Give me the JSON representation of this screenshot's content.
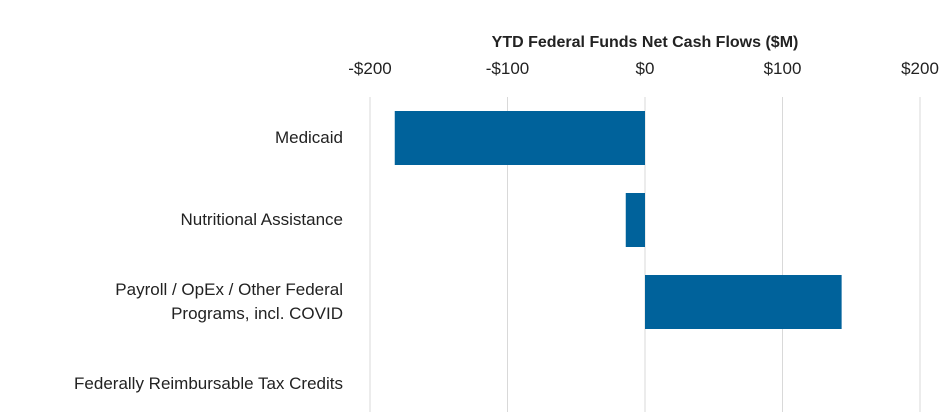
{
  "chart_data": {
    "type": "bar",
    "orientation": "horizontal",
    "title": "YTD Federal Funds Net Cash Flows ($M)",
    "categories": [
      "Medicaid",
      "Nutritional Assistance",
      "Payroll / OpEx / Other Federal Programs, incl. COVID",
      "Federally Reimbursable Tax Credits"
    ],
    "values": [
      -182,
      -14,
      143,
      0
    ],
    "color": "#00629b",
    "xlim": [
      -200,
      200
    ],
    "xticks": [
      {
        "value": -200,
        "label": "-$200"
      },
      {
        "value": -100,
        "label": "-$100"
      },
      {
        "value": 0,
        "label": "$0"
      },
      {
        "value": 100,
        "label": "$100"
      },
      {
        "value": 200,
        "label": "$200"
      }
    ],
    "grid": true
  }
}
